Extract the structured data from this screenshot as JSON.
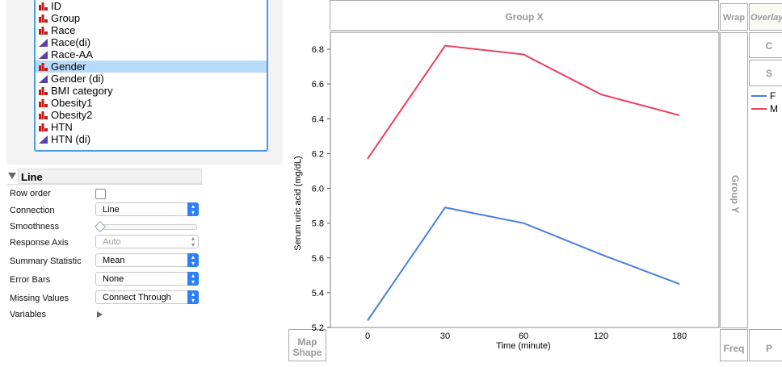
{
  "columns": [
    {
      "label": "ID",
      "type": "nominal"
    },
    {
      "label": "Group",
      "type": "nominal"
    },
    {
      "label": "Race",
      "type": "nominal"
    },
    {
      "label": "Race(di)",
      "type": "continuous"
    },
    {
      "label": "Race-AA",
      "type": "continuous"
    },
    {
      "label": "Gender",
      "type": "nominal",
      "selected": true
    },
    {
      "label": "Gender (di)",
      "type": "continuous"
    },
    {
      "label": "BMI category",
      "type": "nominal"
    },
    {
      "label": "Obesity1",
      "type": "nominal"
    },
    {
      "label": "Obesity2",
      "type": "nominal"
    },
    {
      "label": "HTN",
      "type": "nominal"
    },
    {
      "label": "HTN (di)",
      "type": "continuous"
    }
  ],
  "line_panel": {
    "title": "Line",
    "row_order": "Row order",
    "row_order_checked": false,
    "connection": {
      "label": "Connection",
      "value": "Line"
    },
    "smoothness": {
      "label": "Smoothness",
      "value": 0
    },
    "response_axis": {
      "label": "Response Axis",
      "value": "Auto"
    },
    "summary_statistic": {
      "label": "Summary Statistic",
      "value": "Mean"
    },
    "error_bars": {
      "label": "Error Bars",
      "value": "None"
    },
    "missing_values": {
      "label": "Missing Values",
      "value": "Connect Through"
    },
    "variables": "Variables"
  },
  "zones": {
    "group_x": "Group X",
    "group_y": "Group Y",
    "wrap": "Wrap",
    "overlay": "Overlay",
    "freq": "Freq",
    "map_shape": "Map Shape",
    "c": "C",
    "s": "S",
    "p": "P"
  },
  "chart_data": {
    "type": "line",
    "xlabel": "Time (minute)",
    "ylabel": "Serum uric acid (mg/dL)",
    "categories": [
      "0",
      "30",
      "60",
      "120",
      "180"
    ],
    "ylim": [
      5.2,
      6.9
    ],
    "yticks": [
      5.2,
      5.4,
      5.6,
      5.8,
      6.0,
      6.2,
      6.4,
      6.6,
      6.8
    ],
    "legend": "right",
    "series": [
      {
        "name": "F",
        "color": "#4a7de0",
        "values": [
          5.24,
          5.89,
          5.8,
          5.62,
          5.45
        ]
      },
      {
        "name": "M",
        "color": "#e8405e",
        "values": [
          6.17,
          6.82,
          6.77,
          6.54,
          6.42
        ]
      }
    ]
  }
}
